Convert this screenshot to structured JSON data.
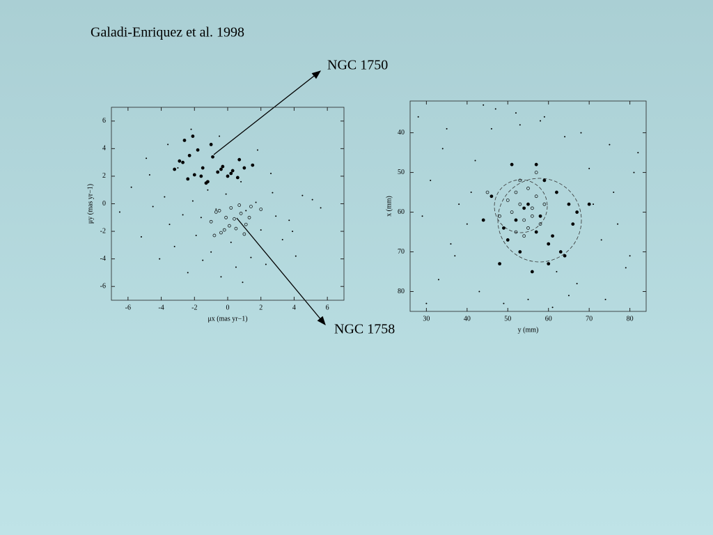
{
  "slide": {
    "citation": "Galadi-Enriquez et al. 1998",
    "labels": [
      "NGC 1750",
      "NGC 1758"
    ]
  },
  "chart_data": [
    {
      "type": "scatter",
      "xlabel": "μx (mas yr−1)",
      "ylabel": "μy (mas yr−1)",
      "xlim": [
        -7,
        7
      ],
      "ylim": [
        -7,
        7
      ],
      "xticks": [
        -6,
        -4,
        -2,
        0,
        2,
        4,
        6
      ],
      "yticks": [
        -6,
        -4,
        -2,
        0,
        2,
        4,
        6
      ],
      "y_inverted": false,
      "series": [
        {
          "marker": "dot",
          "color": "#000000",
          "x": [
            -6.5,
            -5.8,
            -5.2,
            -4.9,
            -4.5,
            -4.1,
            -3.8,
            -3.5,
            -3.2,
            -3.0,
            -2.7,
            -2.4,
            -2.1,
            -1.9,
            -1.5,
            -1.2,
            -1.0,
            -0.7,
            -0.4,
            -0.1,
            0.2,
            0.5,
            0.8,
            1.1,
            1.4,
            1.7,
            2.0,
            2.3,
            2.6,
            2.9,
            3.3,
            3.7,
            4.1,
            4.5,
            5.1,
            5.6,
            -3.6,
            -2.2,
            -0.5,
            1.8,
            -4.7,
            0.9,
            2.7,
            -1.6,
            3.9
          ],
          "values": [
            -0.6,
            1.2,
            -2.4,
            3.3,
            -0.2,
            -4.0,
            0.5,
            -1.5,
            -3.1,
            2.6,
            -0.8,
            -5.0,
            0.2,
            -2.3,
            -4.1,
            1.0,
            -3.5,
            -0.4,
            -5.3,
            0.7,
            -2.8,
            -4.6,
            1.6,
            -0.5,
            -3.9,
            0.1,
            -1.9,
            -4.4,
            2.2,
            -0.9,
            -2.6,
            -1.2,
            -3.8,
            0.6,
            0.3,
            -0.3,
            4.3,
            5.4,
            4.9,
            3.9,
            2.1,
            -5.7,
            0.8,
            -1.0,
            -2.0
          ]
        },
        {
          "marker": "filled",
          "color": "#000000",
          "x": [
            -3.2,
            -2.9,
            -2.6,
            -2.3,
            -2.0,
            -1.8,
            -1.5,
            -1.2,
            -0.9,
            -0.6,
            -0.3,
            0.0,
            0.3,
            0.6,
            1.0,
            1.5,
            -2.7,
            -2.1,
            -1.6,
            -1.0,
            -0.4,
            0.2,
            -2.4,
            -1.3,
            0.7
          ],
          "values": [
            2.5,
            3.1,
            4.6,
            3.5,
            2.1,
            3.9,
            2.6,
            1.6,
            3.4,
            2.3,
            2.7,
            2.0,
            2.4,
            1.9,
            2.6,
            2.8,
            3.0,
            4.9,
            2.0,
            4.3,
            2.5,
            2.2,
            1.8,
            1.5,
            3.2
          ]
        },
        {
          "marker": "open",
          "color": "#000000",
          "x": [
            -1.0,
            -0.7,
            -0.4,
            -0.1,
            0.2,
            0.5,
            0.8,
            1.1,
            1.4,
            -0.8,
            -0.2,
            0.4,
            1.0,
            -0.5,
            0.1,
            0.7,
            1.3,
            2.0
          ],
          "values": [
            -1.3,
            -0.6,
            -2.1,
            -1.0,
            -0.3,
            -1.8,
            -0.7,
            -1.5,
            -0.2,
            -2.3,
            -1.9,
            -1.1,
            -2.2,
            -0.5,
            -1.6,
            -0.1,
            -1.0,
            -0.4
          ]
        }
      ]
    },
    {
      "type": "scatter",
      "xlabel": "y (mm)",
      "ylabel": "x (mm)",
      "xlim": [
        26,
        84
      ],
      "ylim": [
        32,
        85
      ],
      "xticks": [
        30,
        40,
        50,
        60,
        70,
        80
      ],
      "yticks": [
        40,
        50,
        60,
        70,
        80
      ],
      "y_inverted": true,
      "series": [
        {
          "marker": "dot",
          "color": "#000000",
          "x": [
            28,
            31,
            34,
            37,
            40,
            43,
            46,
            49,
            52,
            55,
            58,
            61,
            64,
            67,
            70,
            73,
            76,
            79,
            82,
            29,
            33,
            38,
            42,
            47,
            53,
            59,
            65,
            71,
            77,
            81,
            30,
            36,
            44,
            62,
            68,
            74,
            80,
            35,
            41,
            75
          ],
          "values": [
            36,
            52,
            44,
            71,
            63,
            80,
            39,
            83,
            35,
            82,
            37,
            84,
            41,
            78,
            49,
            67,
            55,
            74,
            45,
            61,
            77,
            58,
            47,
            34,
            38,
            36,
            81,
            58,
            63,
            50,
            83,
            68,
            33,
            75,
            40,
            82,
            71,
            39,
            55,
            43
          ]
        },
        {
          "marker": "filled",
          "color": "#000000",
          "x": [
            48,
            50,
            52,
            55,
            57,
            59,
            61,
            63,
            65,
            67,
            46,
            49,
            53,
            56,
            58,
            60,
            62,
            64,
            66,
            70,
            44,
            51,
            54,
            57,
            60
          ],
          "values": [
            73,
            67,
            62,
            58,
            48,
            52,
            66,
            70,
            58,
            60,
            56,
            64,
            70,
            75,
            61,
            68,
            55,
            71,
            63,
            58,
            62,
            48,
            59,
            65,
            73
          ]
        },
        {
          "marker": "open",
          "color": "#000000",
          "x": [
            50,
            51,
            52,
            53,
            54,
            55,
            56,
            57,
            58,
            52,
            54,
            56,
            48,
            45,
            59,
            53,
            55,
            57
          ],
          "values": [
            57,
            60,
            55,
            58,
            62,
            54,
            59,
            56,
            63,
            65,
            66,
            61,
            61,
            55,
            58,
            52,
            64,
            50
          ]
        }
      ]
    }
  ]
}
